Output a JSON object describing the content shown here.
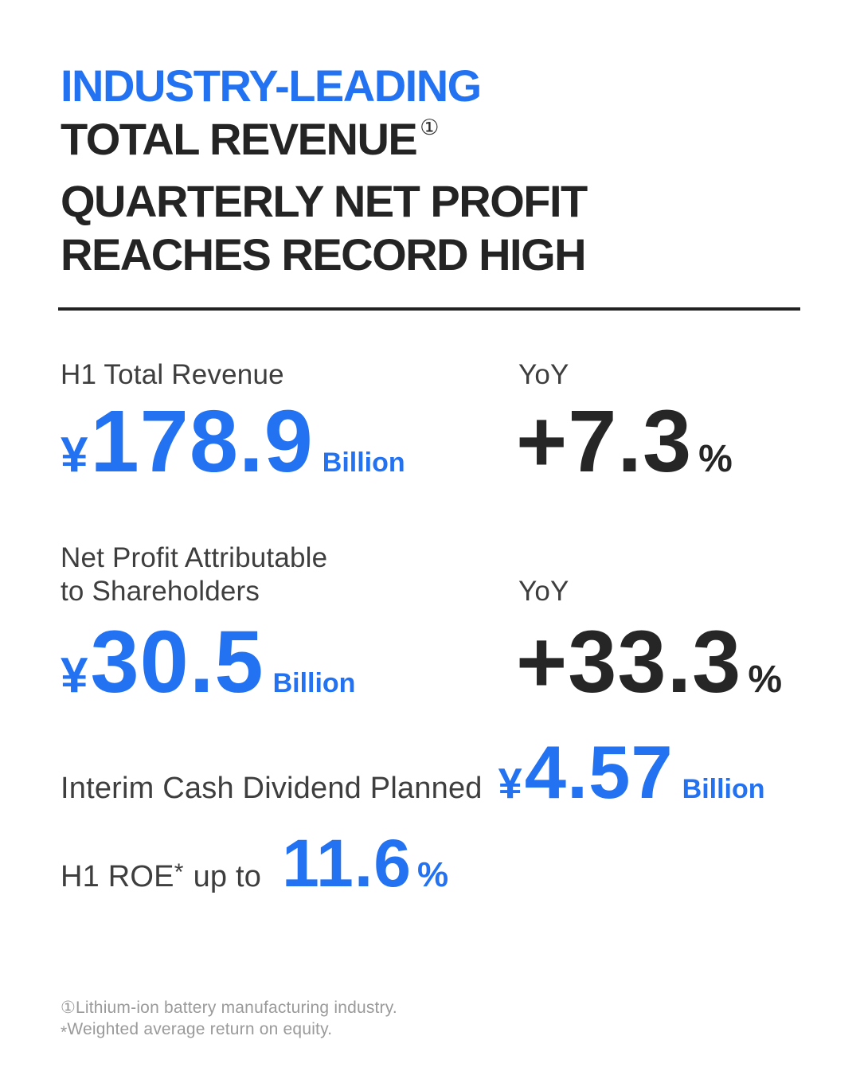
{
  "page": {
    "background": "#FFFFFF",
    "accent_blue": "#2272F2",
    "text_dark": "#262626",
    "label_gray": "#3E3E3E",
    "footnote_gray": "#9A9A9A"
  },
  "title": {
    "line1": "INDUSTRY-LEADING",
    "line2": "TOTAL REVENUE",
    "line2_footnote_marker": "①",
    "line3": "QUARTERLY NET PROFIT",
    "line4": "REACHES RECORD HIGH"
  },
  "metrics": {
    "revenue": {
      "label": "H1 Total Revenue",
      "currency": "¥",
      "value": "178.9",
      "unit": "Billion"
    },
    "revenue_yoy": {
      "label": "YoY",
      "value": "+7.3",
      "unit": "%"
    },
    "net_profit": {
      "label_line1": "Net Profit Attributable",
      "label_line2": "to Shareholders",
      "currency": "¥",
      "value": "30.5",
      "unit": "Billion"
    },
    "net_profit_yoy": {
      "label": "YoY",
      "value": "+33.3",
      "unit": "%"
    },
    "dividend": {
      "label": "Interim Cash Dividend Planned",
      "currency": "¥",
      "value": "4.57",
      "unit": "Billion"
    },
    "roe": {
      "label": "H1 ROE",
      "label_footnote_marker": "*",
      "label_suffix": "up to",
      "value": "11.6",
      "unit": "%"
    }
  },
  "footnotes": [
    {
      "marker": "①",
      "text": "Lithium-ion battery manufacturing industry."
    },
    {
      "marker": "*",
      "text": "Weighted average return on equity."
    }
  ]
}
